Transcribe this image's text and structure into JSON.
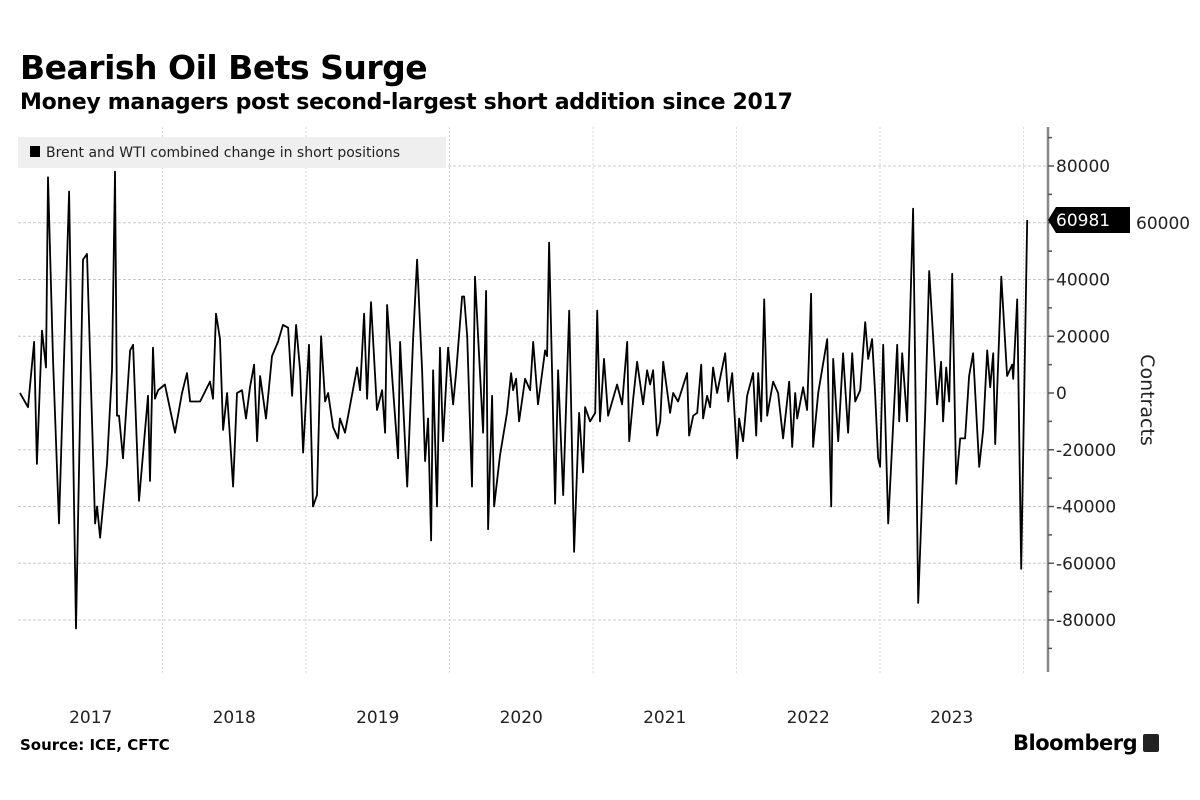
{
  "chart_data": {
    "type": "line",
    "title": "Bearish Oil Bets Surge",
    "subtitle": "Money managers post second-largest short addition since 2017",
    "ylabel": "Contracts",
    "xlabel": "",
    "ylim": [
      -95000,
      95000
    ],
    "xlim": [
      2017.0,
      2024.2
    ],
    "yticks": [
      80000,
      60000,
      40000,
      20000,
      0,
      -20000,
      -40000,
      -60000,
      -80000
    ],
    "ytick_labels": [
      "80000",
      "60000",
      "40000",
      "20000",
      "0",
      "-20000",
      "-40000",
      "-60000",
      "-80000"
    ],
    "xtick_labels": [
      "2017",
      "2018",
      "2019",
      "2020",
      "2021",
      "2022",
      "2023"
    ],
    "grid": true,
    "legend": {
      "placement": "top-left",
      "entries": [
        "Brent and WTI combined change in short positions"
      ]
    },
    "last_value_label": "60981",
    "series": [
      {
        "name": "Brent and WTI combined change in short positions",
        "color": "#000000",
        "x": [
          2017.007,
          2017.063,
          2017.105,
          2017.125,
          2017.16,
          2017.188,
          2017.202,
          2017.237,
          2017.279,
          2017.349,
          2017.397,
          2017.446,
          2017.474,
          2017.53,
          2017.544,
          2017.565,
          2017.613,
          2017.648,
          2017.669,
          2017.683,
          2017.697,
          2017.725,
          2017.774,
          2017.795,
          2017.836,
          2017.899,
          2017.913,
          2017.934,
          2017.948,
          2017.969,
          2018.017,
          2018.087,
          2018.136,
          2018.171,
          2018.192,
          2018.262,
          2018.331,
          2018.352,
          2018.373,
          2018.401,
          2018.422,
          2018.45,
          2018.492,
          2018.519,
          2018.554,
          2018.582,
          2018.61,
          2018.638,
          2018.659,
          2018.68,
          2018.721,
          2018.763,
          2018.805,
          2018.84,
          2018.875,
          2018.903,
          2018.931,
          2018.959,
          2018.98,
          2019.021,
          2019.049,
          2019.077,
          2019.105,
          2019.133,
          2019.154,
          2019.189,
          2019.223,
          2019.237,
          2019.272,
          2019.356,
          2019.377,
          2019.405,
          2019.426,
          2019.453,
          2019.495,
          2019.53,
          2019.551,
          2019.565,
          2019.6,
          2019.642,
          2019.656,
          2019.705,
          2019.746,
          2019.774,
          2019.809,
          2019.83,
          2019.851,
          2019.872,
          2019.886,
          2019.913,
          2019.934,
          2019.955,
          2019.99,
          2020.025,
          2020.046,
          2020.088,
          2020.102,
          2020.123,
          2020.157,
          2020.178,
          2020.234,
          2020.255,
          2020.269,
          2020.297,
          2020.311,
          2020.352,
          2020.401,
          2020.429,
          2020.443,
          2020.464,
          2020.485,
          2020.527,
          2020.562,
          2020.583,
          2020.617,
          2020.666,
          2020.68,
          2020.694,
          2020.736,
          2020.757,
          2020.792,
          2020.834,
          2020.868,
          2020.903,
          2020.931,
          2020.945,
          2020.98,
          2021.015,
          2021.029,
          2021.049,
          2021.077,
          2021.105,
          2021.168,
          2021.203,
          2021.238,
          2021.252,
          2021.28,
          2021.307,
          2021.349,
          2021.377,
          2021.398,
          2021.419,
          2021.447,
          2021.468,
          2021.489,
          2021.537,
          2021.558,
          2021.593,
          2021.656,
          2021.67,
          2021.698,
          2021.726,
          2021.754,
          2021.767,
          2021.795,
          2021.816,
          2021.837,
          2021.865,
          2021.921,
          2021.942,
          2021.97,
          2022.004,
          2022.018,
          2022.046,
          2022.074,
          2022.116,
          2022.137,
          2022.151,
          2022.172,
          2022.193,
          2022.214,
          2022.255,
          2022.29,
          2022.325,
          2022.367,
          2022.388,
          2022.409,
          2022.423,
          2022.464,
          2022.492,
          2022.52,
          2022.534,
          2022.569,
          2022.632,
          2022.66,
          2022.674,
          2022.709,
          2022.743,
          2022.778,
          2022.806,
          2022.827,
          2022.862,
          2022.897,
          2022.918,
          2022.945,
          2022.966,
          2022.987,
          2023.001,
          2023.022,
          2023.057,
          2023.12,
          2023.134,
          2023.155,
          2023.189,
          2023.231,
          2023.266,
          2023.315,
          2023.343,
          2023.398,
          2023.426,
          2023.44,
          2023.461,
          2023.482,
          2023.503,
          2023.531,
          2023.559,
          2023.593,
          2023.621,
          2023.649,
          2023.691,
          2023.719,
          2023.747,
          2023.768,
          2023.789,
          2023.803,
          2023.845,
          2023.886,
          2023.921,
          2023.928,
          2023.956,
          2023.984,
          2024.026
        ],
        "y": [
          0,
          -5000,
          18000,
          -25000,
          22000,
          9000,
          76000,
          12000,
          -46000,
          71000,
          -83000,
          47000,
          49000,
          -46000,
          -40000,
          -51000,
          -25000,
          8000,
          78000,
          -8000,
          -8000,
          -23000,
          15000,
          17000,
          -38000,
          -1000,
          -31000,
          16000,
          -2000,
          1000,
          3000,
          -14000,
          0,
          7000,
          -3000,
          -3000,
          4000,
          -2000,
          28000,
          19000,
          -13000,
          0,
          -33000,
          0,
          1000,
          -9000,
          2000,
          10000,
          -17000,
          6000,
          -9000,
          13000,
          18000,
          24000,
          23000,
          -1000,
          24000,
          8000,
          -21000,
          17000,
          -40000,
          -36000,
          20000,
          -3000,
          0,
          -12000,
          -16000,
          -9000,
          -14000,
          9000,
          1000,
          28000,
          -2000,
          32000,
          -6000,
          1000,
          -14000,
          31000,
          6000,
          -23000,
          18000,
          -33000,
          19000,
          47000,
          8000,
          -24000,
          -9000,
          -52000,
          8000,
          -40000,
          16000,
          -17000,
          16000,
          -4000,
          7000,
          34000,
          34000,
          20000,
          -33000,
          41000,
          -14000,
          36000,
          -48000,
          -1000,
          -40000,
          -22000,
          -7000,
          7000,
          1000,
          5000,
          -10000,
          5000,
          1000,
          18000,
          -4000,
          15000,
          13000,
          53000,
          -39000,
          8000,
          -36000,
          29000,
          -56000,
          -7000,
          -28000,
          -5000,
          -10000,
          -7000,
          29000,
          -10000,
          12000,
          -8000,
          3000,
          -4000,
          18000,
          -17000,
          -2000,
          11000,
          -4000,
          8000,
          3000,
          8000,
          -15000,
          -10000,
          11000,
          -7000,
          0,
          -3000,
          7000,
          -15000,
          -8000,
          -7000,
          10000,
          -9000,
          -1000,
          -5000,
          9000,
          0,
          14000,
          -3000,
          7000,
          -23000,
          -9000,
          -17000,
          -1000,
          7000,
          -15000,
          7000,
          -10000,
          33000,
          -8000,
          4000,
          0,
          -16000,
          4000,
          -19000,
          0,
          -9000,
          2000,
          -6000,
          35000,
          -19000,
          0,
          19000,
          -40000,
          12000,
          -17000,
          14000,
          -14000,
          14000,
          -3000,
          1000,
          25000,
          12000,
          19000,
          0,
          -23000,
          -26000,
          17000,
          -46000,
          17000,
          -10000,
          14000,
          -10000,
          65000,
          -74000,
          -7000,
          43000,
          -4000,
          11000,
          -10000,
          9000,
          -3000,
          42000,
          -32000,
          -16000,
          -16000,
          6000,
          14000,
          -26000,
          -13000,
          15000,
          2000,
          14000,
          -18000,
          41000,
          6000,
          10000,
          5000,
          33000,
          -62000,
          60981
        ]
      }
    ]
  },
  "footer": {
    "source": "Source: ICE, CFTC",
    "brand": "Bloomberg"
  }
}
